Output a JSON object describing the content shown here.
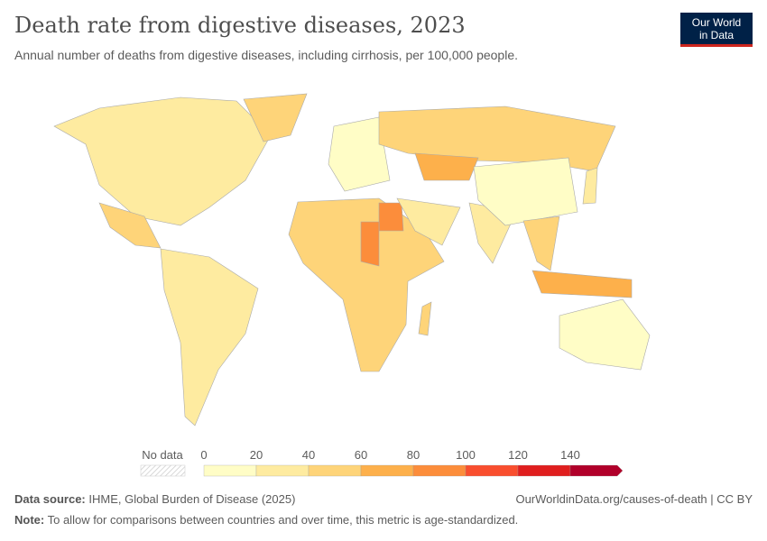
{
  "header": {
    "title": "Death rate from digestive diseases, 2023",
    "subtitle": "Annual number of deaths from digestive diseases, including cirrhosis, per 100,000 people.",
    "logo": "Our World in Data",
    "logo_line1": "Our World",
    "logo_line2": "in Data"
  },
  "legend": {
    "no_data_label": "No data",
    "ticks": [
      "0",
      "20",
      "40",
      "60",
      "80",
      "100",
      "120",
      "140"
    ],
    "bins": [
      {
        "min": 0,
        "max": 20,
        "color": "#fffdc6"
      },
      {
        "min": 20,
        "max": 40,
        "color": "#feeba0"
      },
      {
        "min": 40,
        "max": 60,
        "color": "#fed479"
      },
      {
        "min": 60,
        "max": 80,
        "color": "#fdb04b"
      },
      {
        "min": 80,
        "max": 100,
        "color": "#fc8d3b"
      },
      {
        "min": 100,
        "max": 120,
        "color": "#f94e2e"
      },
      {
        "min": 120,
        "max": 140,
        "color": "#e01e1e"
      },
      {
        "min": 140,
        "max": null,
        "color": "#b1002a"
      }
    ]
  },
  "map": {
    "regions": [
      {
        "name": "North America",
        "bin": 1
      },
      {
        "name": "Greenland",
        "bin": 2
      },
      {
        "name": "Mexico and Central America",
        "bin": 2
      },
      {
        "name": "South America",
        "bin": 1
      },
      {
        "name": "Europe",
        "bin": 0
      },
      {
        "name": "Russia",
        "bin": 2
      },
      {
        "name": "Kazakhstan",
        "bin": 3
      },
      {
        "name": "Africa",
        "bin": 2
      },
      {
        "name": "Egypt",
        "bin": 4
      },
      {
        "name": "Chad",
        "bin": 4
      },
      {
        "name": "Middle East",
        "bin": 1
      },
      {
        "name": "India",
        "bin": 1
      },
      {
        "name": "China",
        "bin": 0
      },
      {
        "name": "Southeast Asia",
        "bin": 2
      },
      {
        "name": "Indonesia",
        "bin": 3
      },
      {
        "name": "Australia",
        "bin": 0
      },
      {
        "name": "Madagascar",
        "bin": 2
      },
      {
        "name": "Japan",
        "bin": 1
      }
    ]
  },
  "footer": {
    "source_label": "Data source:",
    "source": "IHME, Global Burden of Disease (2025)",
    "url": "OurWorldinData.org/causes-of-death | CC BY",
    "note_label": "Note:",
    "note": "To allow for comparisons between countries and over time, this metric is age-standardized."
  }
}
